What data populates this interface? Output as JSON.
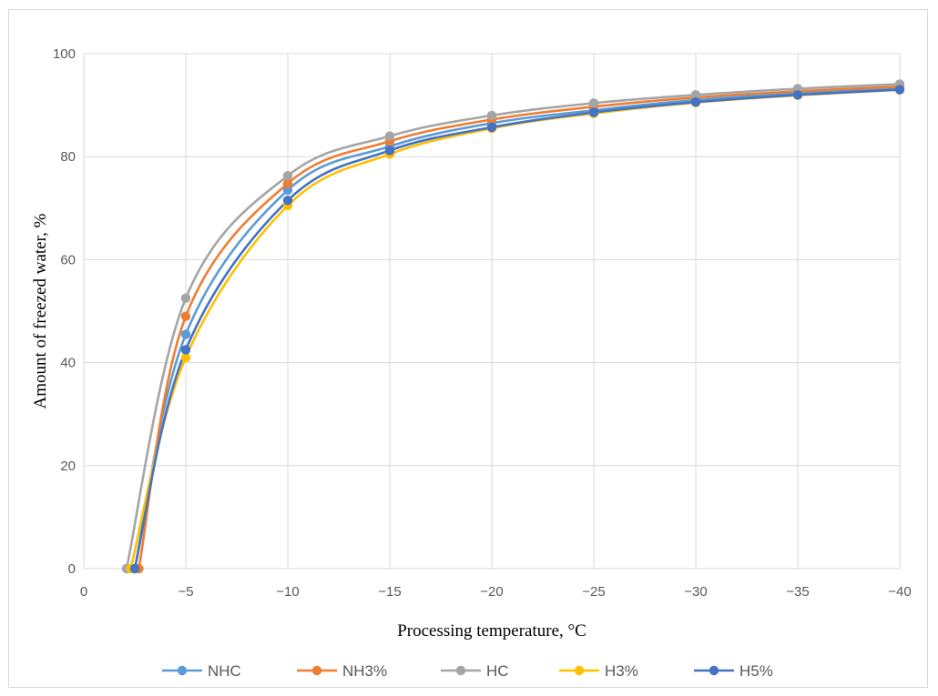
{
  "chart_data": {
    "type": "line",
    "title": "",
    "xlabel": "Processing temperature, °C",
    "ylabel": "Amount of freezed water, %",
    "xlim": [
      0,
      -40
    ],
    "ylim": [
      0,
      100
    ],
    "x_ticks": [
      "0",
      "−5",
      "−10",
      "−15",
      "−20",
      "−25",
      "−30",
      "−35",
      "−40"
    ],
    "y_ticks": [
      "0",
      "20",
      "40",
      "60",
      "80",
      "100"
    ],
    "grid": true,
    "legend_position": "bottom",
    "smooth": true,
    "series": [
      {
        "name": "NHC",
        "color": "#5b9bd5",
        "points": [
          [
            -2.5,
            0
          ],
          [
            -5,
            45.5
          ],
          [
            -10,
            73.5
          ],
          [
            -15,
            82
          ],
          [
            -20,
            86.5
          ],
          [
            -25,
            89
          ],
          [
            -30,
            91
          ],
          [
            -35,
            92.3
          ],
          [
            -40,
            93.2
          ]
        ]
      },
      {
        "name": "NH3%",
        "color": "#ed7d31",
        "points": [
          [
            -2.7,
            0
          ],
          [
            -5,
            49
          ],
          [
            -10,
            74.8
          ],
          [
            -15,
            83
          ],
          [
            -20,
            87.2
          ],
          [
            -25,
            89.7
          ],
          [
            -30,
            91.5
          ],
          [
            -35,
            92.7
          ],
          [
            -40,
            93.6
          ]
        ]
      },
      {
        "name": "HC",
        "color": "#a5a5a5",
        "points": [
          [
            -2.1,
            0
          ],
          [
            -5,
            52.5
          ],
          [
            -10,
            76.3
          ],
          [
            -15,
            84
          ],
          [
            -20,
            88
          ],
          [
            -25,
            90.4
          ],
          [
            -30,
            92
          ],
          [
            -35,
            93.2
          ],
          [
            -40,
            94.1
          ]
        ]
      },
      {
        "name": "H3%",
        "color": "#ffc000",
        "points": [
          [
            -2.3,
            0
          ],
          [
            -5,
            41
          ],
          [
            -10,
            70.5
          ],
          [
            -15,
            80.5
          ],
          [
            -20,
            85.5
          ],
          [
            -25,
            88.4
          ],
          [
            -30,
            90.5
          ],
          [
            -35,
            91.9
          ],
          [
            -40,
            93
          ]
        ]
      },
      {
        "name": "H5%",
        "color": "#4472c4",
        "points": [
          [
            -2.5,
            0
          ],
          [
            -5,
            42.5
          ],
          [
            -10,
            71.5
          ],
          [
            -15,
            81.2
          ],
          [
            -20,
            85.7
          ],
          [
            -25,
            88.6
          ],
          [
            -30,
            90.6
          ],
          [
            -35,
            92
          ],
          [
            -40,
            93
          ]
        ]
      }
    ]
  }
}
